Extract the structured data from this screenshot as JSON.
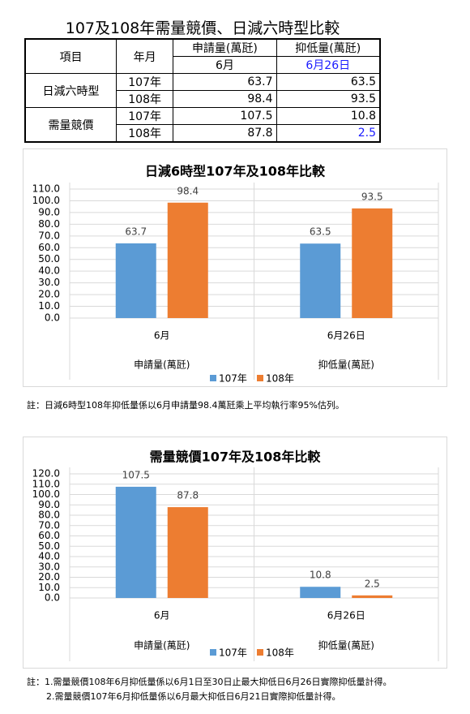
{
  "title": "107及108年需量競價、日減六時型比較",
  "table": {
    "header": [
      "項目",
      "年月",
      "申請量(萬瓩)",
      "抑低量(萬瓩)"
    ],
    "subheader": [
      "6月",
      "6月26日"
    ],
    "groups": [
      {
        "name": "日減六時型",
        "rows": [
          [
            "107年",
            63.7,
            63.5
          ],
          [
            "108年",
            98.4,
            93.5
          ]
        ]
      },
      {
        "name": "需量競價",
        "rows": [
          [
            "107年",
            107.5,
            10.8
          ],
          [
            "108年",
            87.8,
            2.5
          ]
        ]
      }
    ]
  },
  "chart_data": [
    {
      "type": "bar",
      "title": "日減6時型107年及108年比較",
      "categories": [
        "6月",
        "6月26日"
      ],
      "groups": [
        "申請量(萬瓩)",
        "抑低量(萬瓩)"
      ],
      "series": [
        {
          "name": "107年",
          "color": "#5b9bd5",
          "values": [
            63.7,
            63.5
          ]
        },
        {
          "name": "108年",
          "color": "#ed7d31",
          "values": [
            98.4,
            93.5
          ]
        }
      ],
      "ylim": [
        0,
        110
      ],
      "yticks": [
        {
          "value": 0,
          "label": "0.0"
        },
        {
          "value": 10,
          "label": "10.0"
        },
        {
          "value": 20,
          "label": "20.0"
        },
        {
          "value": 30,
          "label": "30.0"
        },
        {
          "value": 40,
          "label": "40.0"
        },
        {
          "value": 50,
          "label": "50.0"
        },
        {
          "value": 60,
          "label": "60.0"
        },
        {
          "value": 70,
          "label": "70.0"
        },
        {
          "value": 80,
          "label": "80.0"
        },
        {
          "value": 90,
          "label": "90.0"
        },
        {
          "value": 100,
          "label": "100.0"
        },
        {
          "value": 110,
          "label": "110.0"
        }
      ],
      "grid": true,
      "note": "註：日減6時型108年抑低量係以6月申請量98.4萬瓩乘上平均執行率95%估列。"
    },
    {
      "type": "bar",
      "title": "需量競價107年及108年比較",
      "categories": [
        "6月",
        "6月26日"
      ],
      "groups": [
        "申請量(萬瓩)",
        "抑低量(萬瓩)"
      ],
      "series": [
        {
          "name": "107年",
          "color": "#5b9bd5",
          "values": [
            107.5,
            10.8
          ]
        },
        {
          "name": "108年",
          "color": "#ed7d31",
          "values": [
            87.8,
            2.5
          ]
        }
      ],
      "ylim": [
        0,
        120
      ],
      "yticks": [
        {
          "value": 0,
          "label": "0.0"
        },
        {
          "value": 10,
          "label": "10.0"
        },
        {
          "value": 20,
          "label": "20.0"
        },
        {
          "value": 30,
          "label": "30.0"
        },
        {
          "value": 40,
          "label": "40.0"
        },
        {
          "value": 50,
          "label": "50.0"
        },
        {
          "value": 60,
          "label": "60.0"
        },
        {
          "value": 70,
          "label": "70.0"
        },
        {
          "value": 80,
          "label": "80.0"
        },
        {
          "value": 90,
          "label": "90.0"
        },
        {
          "value": 100,
          "label": "100.0"
        },
        {
          "value": 110,
          "label": "110.0"
        },
        {
          "value": 120,
          "label": "120.0"
        }
      ],
      "grid": true,
      "notes": [
        "註：1.需量競價108年6月抑低量係以6月1日至30日止最大抑低日6月26日實際抑低量計得。",
        "2.需量競價107年6月抑低量係以6月最大抑低日6月21日實際抑低量計得。"
      ]
    }
  ]
}
